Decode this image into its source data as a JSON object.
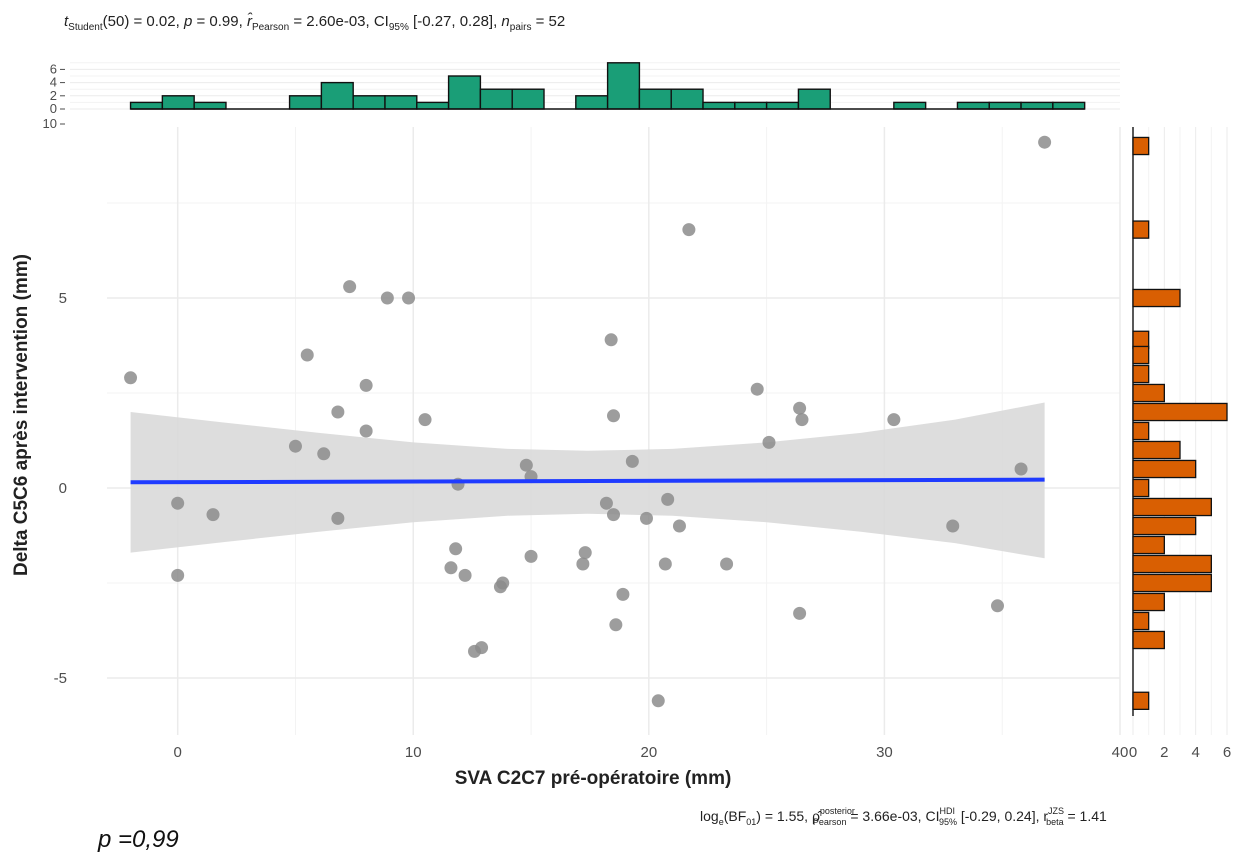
{
  "annotations": {
    "top_stat": {
      "t_sub": "Student",
      "t_df": "(50) = 0.02, ",
      "p_part": " = 0.99, ",
      "r_sub": "Pearson",
      "r_val": " = 2.60e-03, CI",
      "ci_sub": "95%",
      "ci_val": " [-0.27, 0.28], ",
      "n_sub": "pairs",
      "n_val": " = 52"
    },
    "bottom_stat": {
      "log_pre": "log",
      "log_sub": "e",
      "log_mid": "(BF",
      "log_sub2": "01",
      "log_val": ") = 1.55, ",
      "rho_sup": "posterior",
      "rho_sub": "Pearson",
      "rho_val": " = 3.66e-03, CI",
      "ci_sup": "HDI",
      "ci_sub": "95%",
      "ci_val": " [-0.29, 0.24], r",
      "r_sup": "JZS",
      "r_sub": "beta",
      "r_val": " = 1.41"
    },
    "p_note": "p =0,99"
  },
  "chart_data": {
    "type": "scatter",
    "xlabel": "SVA C2C7 pré-opératoire (mm)",
    "ylabel": "Delta C5C6 après intervention (mm)",
    "xlim": [
      -3,
      40
    ],
    "ylim": [
      -6.5,
      9.5
    ],
    "x_ticks": [
      0,
      10,
      20,
      30,
      40
    ],
    "y_ticks": [
      -5,
      0,
      5
    ],
    "grid": true,
    "colors": {
      "points": "#8c8c8c",
      "line": "#1f3bff",
      "band": "#d9d9d9",
      "top_hist": "#1a9e77",
      "right_hist": "#d95f02",
      "grid": "#ebebeb"
    },
    "points": [
      [
        -2.0,
        2.9
      ],
      [
        0.0,
        -0.4
      ],
      [
        0.0,
        -2.3
      ],
      [
        1.5,
        -0.7
      ],
      [
        5.0,
        1.1
      ],
      [
        5.5,
        3.5
      ],
      [
        6.2,
        0.9
      ],
      [
        6.8,
        2.0
      ],
      [
        6.8,
        -0.8
      ],
      [
        7.3,
        5.3
      ],
      [
        8.0,
        2.7
      ],
      [
        8.0,
        1.5
      ],
      [
        8.9,
        5.0
      ],
      [
        9.8,
        5.0
      ],
      [
        10.5,
        1.8
      ],
      [
        11.6,
        -2.1
      ],
      [
        11.8,
        -1.6
      ],
      [
        11.9,
        0.1
      ],
      [
        12.2,
        -2.3
      ],
      [
        12.6,
        -4.3
      ],
      [
        12.9,
        -4.2
      ],
      [
        13.7,
        -2.6
      ],
      [
        13.8,
        -2.5
      ],
      [
        14.8,
        0.6
      ],
      [
        15.0,
        0.3
      ],
      [
        15.0,
        -1.8
      ],
      [
        17.2,
        -2.0
      ],
      [
        17.3,
        -1.7
      ],
      [
        18.2,
        -0.4
      ],
      [
        18.4,
        3.9
      ],
      [
        18.5,
        1.9
      ],
      [
        18.5,
        -0.7
      ],
      [
        18.6,
        -3.6
      ],
      [
        18.9,
        -2.8
      ],
      [
        19.3,
        0.7
      ],
      [
        19.9,
        -0.8
      ],
      [
        20.4,
        -5.6
      ],
      [
        20.7,
        -2.0
      ],
      [
        20.8,
        -0.3
      ],
      [
        21.3,
        -1.0
      ],
      [
        21.7,
        6.8
      ],
      [
        23.3,
        -2.0
      ],
      [
        24.6,
        2.6
      ],
      [
        25.1,
        1.2
      ],
      [
        26.4,
        2.1
      ],
      [
        26.5,
        1.8
      ],
      [
        26.4,
        -3.3
      ],
      [
        30.4,
        1.8
      ],
      [
        32.9,
        -1.0
      ],
      [
        34.8,
        -3.1
      ],
      [
        35.8,
        0.5
      ],
      [
        36.8,
        9.1
      ]
    ],
    "regression": {
      "x": [
        -2.0,
        36.8
      ],
      "y": [
        0.15,
        0.22
      ]
    },
    "confidence_band": {
      "x": [
        -2.0,
        2.0,
        6.0,
        10.0,
        14.0,
        17.4,
        21.0,
        25.0,
        29.0,
        33.0,
        36.8
      ],
      "upper": [
        2.0,
        1.72,
        1.45,
        1.2,
        1.03,
        0.98,
        1.03,
        1.2,
        1.45,
        1.8,
        2.25
      ],
      "lower": [
        -1.7,
        -1.42,
        -1.15,
        -0.9,
        -0.73,
        -0.68,
        -0.73,
        -0.9,
        -1.15,
        -1.45,
        -1.85
      ]
    },
    "top_histogram": {
      "bin_width": 1.35,
      "bin_start": -2.0,
      "counts": [
        1,
        2,
        1,
        0,
        0,
        2,
        4,
        2,
        2,
        1,
        5,
        3,
        3,
        0,
        2,
        7,
        3,
        3,
        1,
        1,
        1,
        3,
        0,
        0,
        1,
        0,
        1,
        1,
        1,
        1
      ],
      "y_ticks": [
        0,
        2,
        4,
        6,
        10
      ],
      "ylim": [
        0,
        10
      ]
    },
    "right_histogram": {
      "bins": [
        [
          9.0,
          1
        ],
        [
          6.8,
          1
        ],
        [
          5.0,
          3
        ],
        [
          3.9,
          1
        ],
        [
          3.5,
          1
        ],
        [
          3.0,
          1
        ],
        [
          2.5,
          2
        ],
        [
          2.0,
          6
        ],
        [
          1.5,
          1
        ],
        [
          1.0,
          3
        ],
        [
          0.5,
          4
        ],
        [
          0.0,
          1
        ],
        [
          -0.5,
          5
        ],
        [
          -1.0,
          4
        ],
        [
          -1.5,
          2
        ],
        [
          -2.0,
          5
        ],
        [
          -2.5,
          5
        ],
        [
          -3.0,
          2
        ],
        [
          -3.5,
          1
        ],
        [
          -4.0,
          2
        ],
        [
          -5.6,
          1
        ]
      ],
      "bin_height": 0.45,
      "x_ticks": [
        0,
        2,
        4,
        6
      ],
      "xlim": [
        0,
        6
      ]
    }
  }
}
